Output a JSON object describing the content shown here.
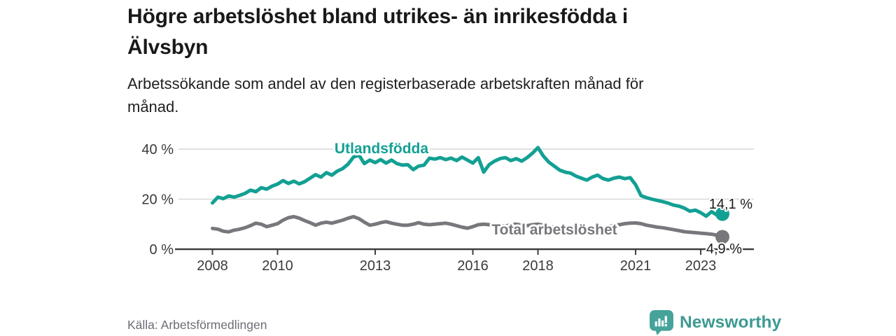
{
  "title_lines": [
    "Högre arbetslöshet bland utrikes- än inrikesfödda i",
    "Älvsbyn"
  ],
  "title": "Högre arbetslöshet bland utrikes- än inrikesfödda i Älvsbyn",
  "subtitle_lines": [
    "Arbetssökande som andel av den registerbaserade arbetskraften månad för",
    "månad."
  ],
  "source": "Källa: Arbetsförmedlingen",
  "branding": {
    "name": "Newsworthy",
    "icon": "bar-chart-speech-bubble",
    "color": "#3d9a92",
    "icon_color": "#45a39a"
  },
  "colors": {
    "foreign_line": "#13a094",
    "total_line": "#78777c",
    "grid": "#d7d7d7",
    "axis": "#3f3f42",
    "tick_text": "#3a3a3a",
    "value_text": "#1a1a1a"
  },
  "chart_data": {
    "type": "line",
    "title": "Högre arbetslöshet bland utrikes- än inrikesfödda i Älvsbyn",
    "subtitle": "Arbetssökande som andel av den registerbaserade arbetskraften månad för månad.",
    "ylabel": "",
    "xlabel": "",
    "unit": "%",
    "ylim": [
      0,
      44
    ],
    "xlim": [
      2006.85,
      2024.25
    ],
    "grid": "horizontal",
    "legend_position": "inline-labels",
    "x_ticks": [
      "2008",
      "2010",
      "2013",
      "2016",
      "2018",
      "2021",
      "2023"
    ],
    "x_tick_years": [
      2008,
      2010,
      2013,
      2016,
      2018,
      2021,
      2023
    ],
    "y_ticks": [
      {
        "value": 40,
        "label": "40 %"
      },
      {
        "value": 20,
        "label": "20 %"
      },
      {
        "value": 0,
        "label": "0 %"
      }
    ],
    "x_start_year": 2008,
    "x_step_years": 0.16667,
    "series": [
      {
        "name": "Utlandsfödda",
        "color": "#13a094",
        "end_label": "14,1 %",
        "end_value": 14.1,
        "values": [
          18.5,
          20.8,
          20.2,
          21.3,
          20.8,
          21.5,
          22.3,
          23.6,
          23.0,
          24.6,
          24.0,
          25.2,
          26.0,
          27.4,
          26.3,
          27.2,
          26.1,
          27.0,
          28.4,
          29.8,
          28.8,
          30.6,
          29.6,
          31.2,
          32.2,
          34.0,
          36.8,
          37.6,
          34.2,
          35.6,
          34.6,
          35.8,
          34.4,
          35.6,
          34.2,
          33.6,
          33.8,
          31.8,
          33.2,
          33.6,
          36.4,
          36.0,
          36.6,
          35.8,
          36.4,
          35.4,
          36.8,
          35.6,
          34.4,
          36.6,
          30.8,
          33.8,
          35.2,
          36.2,
          36.6,
          35.4,
          36.2,
          35.2,
          36.6,
          38.4,
          40.6,
          37.2,
          34.8,
          33.2,
          31.6,
          30.8,
          30.4,
          29.2,
          28.4,
          27.6,
          28.8,
          29.6,
          28.2,
          27.6,
          28.4,
          28.8,
          28.2,
          28.6,
          25.8,
          21.4,
          20.6,
          20.0,
          19.5,
          19.0,
          18.4,
          17.6,
          17.2,
          16.4,
          15.2,
          15.6,
          14.6,
          13.2,
          15.0,
          13.6,
          14.1
        ]
      },
      {
        "name": "Total arbetslöshet",
        "color": "#78777c",
        "end_label": "4,9 %",
        "end_value": 4.9,
        "values": [
          8.3,
          8.0,
          7.2,
          6.9,
          7.6,
          8.0,
          8.6,
          9.4,
          10.4,
          10.0,
          9.0,
          9.6,
          10.2,
          11.6,
          12.6,
          13.0,
          12.4,
          11.4,
          10.6,
          9.6,
          10.4,
          10.8,
          10.4,
          11.0,
          11.6,
          12.4,
          13.0,
          12.2,
          10.8,
          9.6,
          10.0,
          10.6,
          11.0,
          10.4,
          10.0,
          9.6,
          9.6,
          10.0,
          10.6,
          10.0,
          9.8,
          10.0,
          10.2,
          10.4,
          10.0,
          9.4,
          8.8,
          8.4,
          9.0,
          9.8,
          10.0,
          9.8,
          9.4,
          9.6,
          9.2,
          9.8,
          10.0,
          9.6,
          9.4,
          9.8,
          10.0,
          9.6,
          9.0,
          8.8,
          8.6,
          8.4,
          8.4,
          8.2,
          8.0,
          7.8,
          8.0,
          8.2,
          8.4,
          9.0,
          9.6,
          9.8,
          10.2,
          10.4,
          10.5,
          10.2,
          9.6,
          9.2,
          8.8,
          8.6,
          8.2,
          7.8,
          7.4,
          7.0,
          6.8,
          6.6,
          6.4,
          6.2,
          6.0,
          5.6,
          4.9
        ]
      }
    ]
  }
}
